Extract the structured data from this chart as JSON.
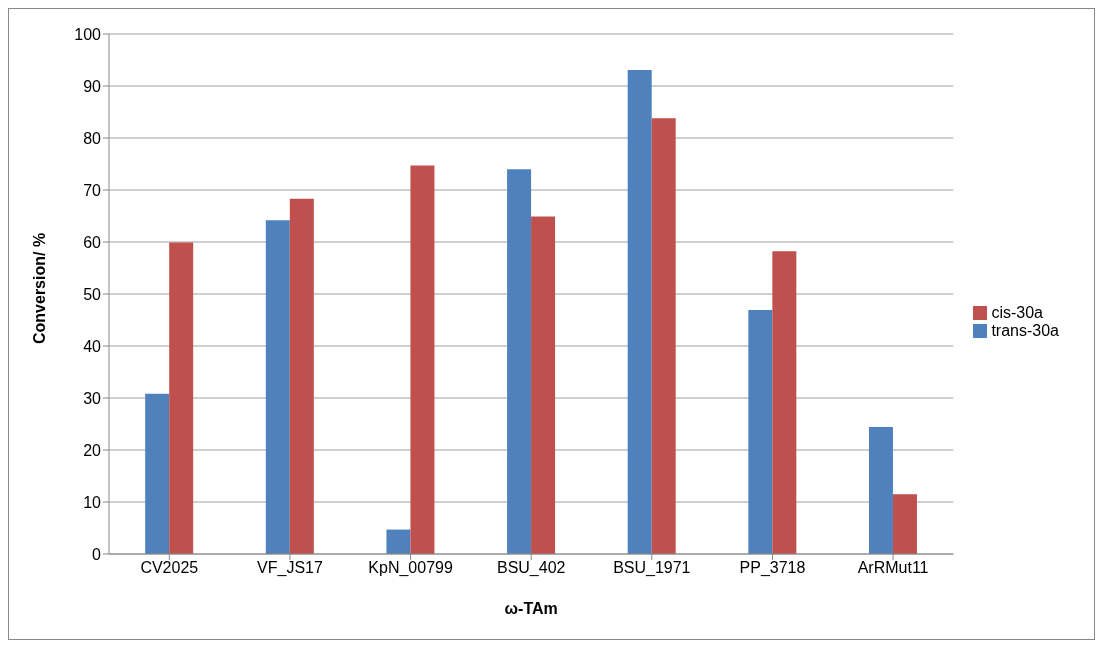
{
  "chart_data": {
    "type": "bar",
    "xlabel": "ω-TAm",
    "ylabel": "Conversion/ %",
    "categories": [
      "CV2025",
      "VF_JS17",
      "KpN_00799",
      "BSU_402",
      "BSU_1971",
      "PP_3718",
      "ArRMut11"
    ],
    "series": [
      {
        "name": "trans-30a",
        "color": "#4f81bd",
        "values": [
          30.8,
          64.2,
          4.7,
          74.0,
          93.1,
          46.9,
          24.4
        ]
      },
      {
        "name": "cis-30a",
        "color": "#c0504d",
        "values": [
          59.9,
          68.3,
          74.7,
          64.9,
          83.8,
          58.2,
          11.5
        ]
      }
    ],
    "ylim": [
      0,
      100
    ],
    "yticks": [
      0,
      10,
      20,
      30,
      40,
      50,
      60,
      70,
      80,
      90,
      100
    ],
    "grid": "y",
    "legend": "right"
  }
}
